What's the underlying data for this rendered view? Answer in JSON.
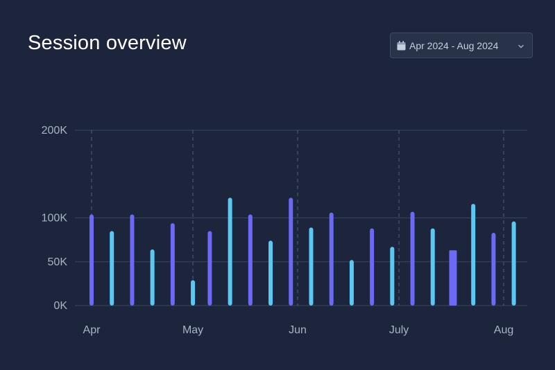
{
  "header": {
    "title": "Session overview",
    "date_range": "Apr 2024 - Aug 2024"
  },
  "icons": {
    "calendar": "calendar-icon",
    "chevron": "chevron-down-icon"
  },
  "colors": {
    "background": "#1c253b",
    "series_a": "#6b69f5",
    "series_b": "#5ac8f2",
    "grid": "#3b465c"
  },
  "chart_data": {
    "type": "bar",
    "title": "Session overview",
    "xlabel": "",
    "ylabel": "",
    "ylim": [
      0,
      200000
    ],
    "y_ticks": [
      {
        "value": 0,
        "label": "0K"
      },
      {
        "value": 50000,
        "label": "50K"
      },
      {
        "value": 100000,
        "label": "100K"
      },
      {
        "value": 200000,
        "label": "200K"
      }
    ],
    "x_ticks": [
      "Apr",
      "May",
      "Jun",
      "July",
      "Aug"
    ],
    "grid": true,
    "legend": "none",
    "bars": [
      {
        "date": "2024-04-01",
        "value": 104000,
        "series": "a"
      },
      {
        "date": "2024-04-07",
        "value": 85000,
        "series": "b"
      },
      {
        "date": "2024-04-13",
        "value": 104000,
        "series": "a"
      },
      {
        "date": "2024-04-19",
        "value": 64000,
        "series": "b"
      },
      {
        "date": "2024-04-25",
        "value": 94000,
        "series": "a"
      },
      {
        "date": "2024-05-01",
        "value": 29000,
        "series": "b"
      },
      {
        "date": "2024-05-06",
        "value": 85000,
        "series": "a"
      },
      {
        "date": "2024-05-12",
        "value": 123000,
        "series": "b"
      },
      {
        "date": "2024-05-18",
        "value": 104000,
        "series": "a"
      },
      {
        "date": "2024-05-24",
        "value": 74000,
        "series": "b"
      },
      {
        "date": "2024-05-30",
        "value": 123000,
        "series": "a"
      },
      {
        "date": "2024-06-05",
        "value": 89000,
        "series": "b"
      },
      {
        "date": "2024-06-11",
        "value": 106000,
        "series": "a"
      },
      {
        "date": "2024-06-17",
        "value": 52000,
        "series": "b"
      },
      {
        "date": "2024-06-23",
        "value": 88000,
        "series": "a"
      },
      {
        "date": "2024-06-29",
        "value": 67000,
        "series": "b"
      },
      {
        "date": "2024-07-05",
        "value": 107000,
        "series": "a"
      },
      {
        "date": "2024-07-11",
        "value": 88000,
        "series": "b"
      },
      {
        "date": "2024-07-17",
        "value": 63000,
        "series": "a"
      },
      {
        "date": "2024-07-23",
        "value": 116000,
        "series": "b"
      },
      {
        "date": "2024-07-29",
        "value": 83000,
        "series": "a"
      },
      {
        "date": "2024-08-04",
        "value": 96000,
        "series": "b"
      }
    ]
  }
}
